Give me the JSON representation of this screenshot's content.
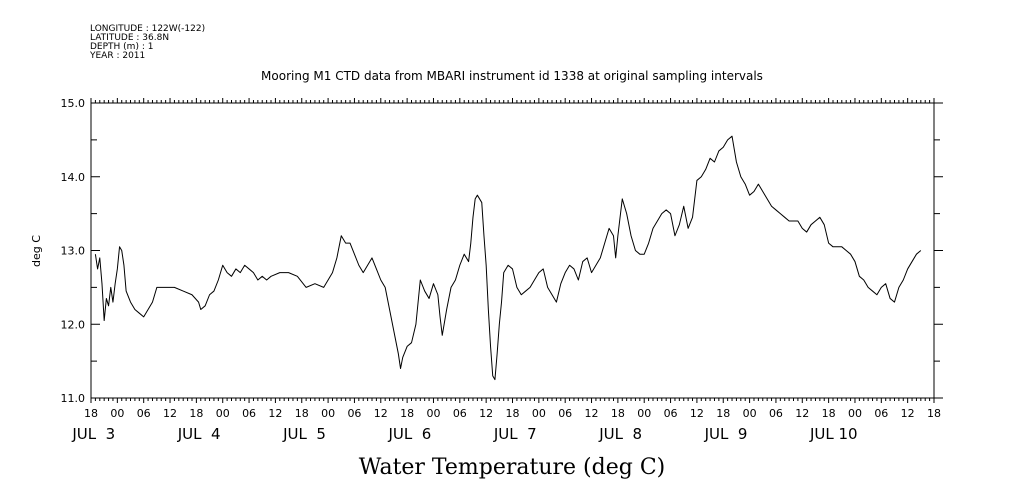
{
  "metadata": {
    "longitude": "LONGITUDE : 122W(-122)",
    "latitude": "LATITUDE : 36.8N",
    "depth": "DEPTH (m) : 1",
    "year": "YEAR : 2011"
  },
  "chart_data": {
    "type": "line",
    "title": "Mooring M1 CTD data from MBARI instrument id 1338 at original sampling intervals",
    "xlabel": "Water Temperature (deg C)",
    "ylabel": "deg C",
    "ylim": [
      11.0,
      15.0
    ],
    "yticks": [
      "11.0",
      "12.0",
      "13.0",
      "14.0",
      "15.0"
    ],
    "xlim_hours": [
      -6,
      186
    ],
    "x_hour_ticks": [
      "18",
      "00",
      "06",
      "12",
      "18",
      "00",
      "06",
      "12",
      "18",
      "00",
      "06",
      "12",
      "18",
      "00",
      "06",
      "12",
      "18",
      "00",
      "06",
      "12",
      "18",
      "00",
      "06",
      "12",
      "18",
      "00",
      "06",
      "12",
      "18",
      "00",
      "06",
      "12",
      "18"
    ],
    "x_day_labels": [
      "JUL  3",
      "JUL  4",
      "JUL  5",
      "JUL  6",
      "JUL  7",
      "JUL  8",
      "JUL  9",
      "JUL 10"
    ],
    "x_unit": "hours since 2011-07-03 00:00 (UTC)",
    "grid": false,
    "series": [
      {
        "points": [
          [
            -5,
            12.95
          ],
          [
            -4.5,
            12.75
          ],
          [
            -4,
            12.9
          ],
          [
            -3.5,
            12.55
          ],
          [
            -3,
            12.05
          ],
          [
            -2.5,
            12.35
          ],
          [
            -2,
            12.25
          ],
          [
            -1.5,
            12.5
          ],
          [
            -1,
            12.3
          ],
          [
            -0.5,
            12.55
          ],
          [
            0,
            12.75
          ],
          [
            0.5,
            13.05
          ],
          [
            1,
            13.0
          ],
          [
            1.5,
            12.8
          ],
          [
            2,
            12.45
          ],
          [
            3,
            12.3
          ],
          [
            4,
            12.2
          ],
          [
            5,
            12.15
          ],
          [
            6,
            12.1
          ],
          [
            7,
            12.2
          ],
          [
            8,
            12.3
          ],
          [
            9,
            12.5
          ],
          [
            11,
            12.5
          ],
          [
            13,
            12.5
          ],
          [
            15,
            12.45
          ],
          [
            17,
            12.4
          ],
          [
            18.5,
            12.3
          ],
          [
            19,
            12.2
          ],
          [
            20,
            12.25
          ],
          [
            21,
            12.4
          ],
          [
            22,
            12.45
          ],
          [
            23,
            12.6
          ],
          [
            24,
            12.8
          ],
          [
            25,
            12.7
          ],
          [
            26,
            12.65
          ],
          [
            27,
            12.75
          ],
          [
            28,
            12.7
          ],
          [
            29,
            12.8
          ],
          [
            30,
            12.75
          ],
          [
            31,
            12.7
          ],
          [
            32,
            12.6
          ],
          [
            33,
            12.65
          ],
          [
            34,
            12.6
          ],
          [
            35,
            12.65
          ],
          [
            37,
            12.7
          ],
          [
            39,
            12.7
          ],
          [
            41,
            12.65
          ],
          [
            43,
            12.5
          ],
          [
            45,
            12.55
          ],
          [
            47,
            12.5
          ],
          [
            48,
            12.6
          ],
          [
            49,
            12.7
          ],
          [
            50,
            12.9
          ],
          [
            51,
            13.2
          ],
          [
            52,
            13.1
          ],
          [
            53,
            13.1
          ],
          [
            54,
            12.95
          ],
          [
            55,
            12.8
          ],
          [
            56,
            12.7
          ],
          [
            57,
            12.8
          ],
          [
            58,
            12.9
          ],
          [
            59,
            12.75
          ],
          [
            60,
            12.6
          ],
          [
            61,
            12.5
          ],
          [
            62,
            12.2
          ],
          [
            63,
            11.9
          ],
          [
            64,
            11.6
          ],
          [
            64.5,
            11.4
          ],
          [
            65,
            11.55
          ],
          [
            66,
            11.7
          ],
          [
            67,
            11.75
          ],
          [
            68,
            12.0
          ],
          [
            68.5,
            12.3
          ],
          [
            69,
            12.6
          ],
          [
            70,
            12.45
          ],
          [
            71,
            12.35
          ],
          [
            72,
            12.55
          ],
          [
            73,
            12.4
          ],
          [
            73.5,
            12.1
          ],
          [
            74,
            11.85
          ],
          [
            75,
            12.2
          ],
          [
            76,
            12.5
          ],
          [
            77,
            12.6
          ],
          [
            78,
            12.8
          ],
          [
            79,
            12.95
          ],
          [
            80,
            12.85
          ],
          [
            80.5,
            13.1
          ],
          [
            81,
            13.45
          ],
          [
            81.5,
            13.7
          ],
          [
            82,
            13.75
          ],
          [
            83,
            13.65
          ],
          [
            83.5,
            13.2
          ],
          [
            84,
            12.8
          ],
          [
            84.5,
            12.2
          ],
          [
            85,
            11.7
          ],
          [
            85.5,
            11.3
          ],
          [
            86,
            11.25
          ],
          [
            86.5,
            11.6
          ],
          [
            87,
            12.0
          ],
          [
            87.5,
            12.3
          ],
          [
            88,
            12.7
          ],
          [
            89,
            12.8
          ],
          [
            90,
            12.75
          ],
          [
            91,
            12.5
          ],
          [
            92,
            12.4
          ],
          [
            93,
            12.45
          ],
          [
            94,
            12.5
          ],
          [
            95,
            12.6
          ],
          [
            96,
            12.7
          ],
          [
            97,
            12.75
          ],
          [
            98,
            12.5
          ],
          [
            99,
            12.4
          ],
          [
            100,
            12.3
          ],
          [
            101,
            12.55
          ],
          [
            102,
            12.7
          ],
          [
            103,
            12.8
          ],
          [
            104,
            12.75
          ],
          [
            105,
            12.6
          ],
          [
            106,
            12.85
          ],
          [
            107,
            12.9
          ],
          [
            108,
            12.7
          ],
          [
            109,
            12.8
          ],
          [
            110,
            12.9
          ],
          [
            111,
            13.1
          ],
          [
            112,
            13.3
          ],
          [
            113,
            13.2
          ],
          [
            113.5,
            12.9
          ],
          [
            114,
            13.2
          ],
          [
            114.5,
            13.45
          ],
          [
            115,
            13.7
          ],
          [
            116,
            13.5
          ],
          [
            117,
            13.2
          ],
          [
            118,
            13.0
          ],
          [
            119,
            12.95
          ],
          [
            120,
            12.95
          ],
          [
            121,
            13.1
          ],
          [
            122,
            13.3
          ],
          [
            123,
            13.4
          ],
          [
            124,
            13.5
          ],
          [
            125,
            13.55
          ],
          [
            126,
            13.5
          ],
          [
            127,
            13.2
          ],
          [
            128,
            13.35
          ],
          [
            129,
            13.6
          ],
          [
            130,
            13.3
          ],
          [
            131,
            13.45
          ],
          [
            132,
            13.95
          ],
          [
            133,
            14.0
          ],
          [
            134,
            14.1
          ],
          [
            135,
            14.25
          ],
          [
            136,
            14.2
          ],
          [
            137,
            14.35
          ],
          [
            138,
            14.4
          ],
          [
            139,
            14.5
          ],
          [
            140,
            14.55
          ],
          [
            141,
            14.2
          ],
          [
            142,
            14.0
          ],
          [
            143,
            13.9
          ],
          [
            144,
            13.75
          ],
          [
            145,
            13.8
          ],
          [
            146,
            13.9
          ],
          [
            147,
            13.8
          ],
          [
            148,
            13.7
          ],
          [
            149,
            13.6
          ],
          [
            150,
            13.55
          ],
          [
            151,
            13.5
          ],
          [
            152,
            13.45
          ],
          [
            153,
            13.4
          ],
          [
            155,
            13.4
          ],
          [
            156,
            13.3
          ],
          [
            157,
            13.25
          ],
          [
            158,
            13.35
          ],
          [
            159,
            13.4
          ],
          [
            160,
            13.45
          ],
          [
            161,
            13.35
          ],
          [
            162,
            13.1
          ],
          [
            163,
            13.05
          ],
          [
            164,
            13.05
          ],
          [
            165,
            13.05
          ],
          [
            166,
            13.0
          ],
          [
            167,
            12.95
          ],
          [
            168,
            12.85
          ],
          [
            169,
            12.65
          ],
          [
            170,
            12.6
          ],
          [
            171,
            12.5
          ],
          [
            172,
            12.45
          ],
          [
            173,
            12.4
          ],
          [
            174,
            12.5
          ],
          [
            175,
            12.55
          ],
          [
            176,
            12.35
          ],
          [
            177,
            12.3
          ],
          [
            178,
            12.5
          ],
          [
            179,
            12.6
          ],
          [
            180,
            12.75
          ],
          [
            181,
            12.85
          ],
          [
            182,
            12.95
          ],
          [
            183,
            13.0
          ]
        ]
      }
    ]
  }
}
